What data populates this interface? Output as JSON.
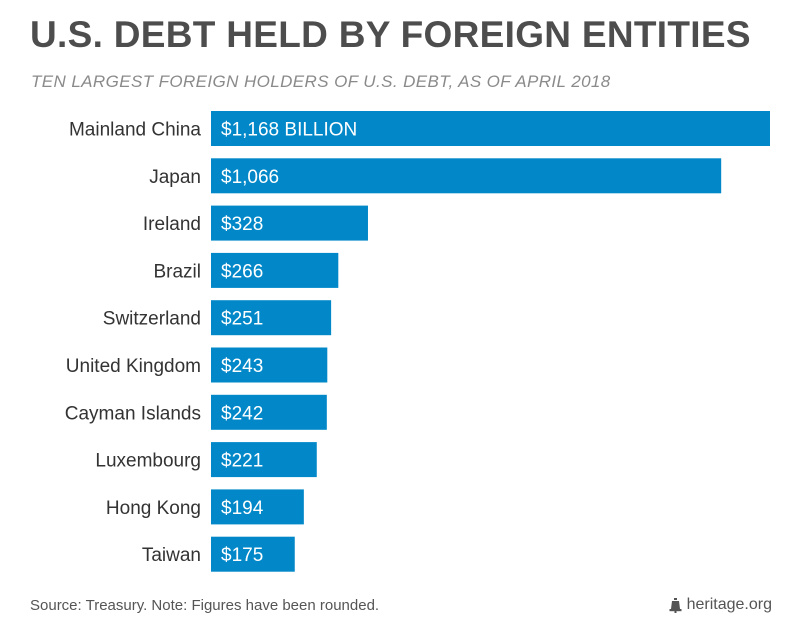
{
  "title": "U.S. DEBT HELD BY FOREIGN ENTITIES",
  "subtitle": "TEN LARGEST FOREIGN HOLDERS OF U.S. DEBT, AS OF APRIL 2018",
  "source_note": "Source: Treasury. Note: Figures have been rounded.",
  "brand": "heritage.org",
  "colors": {
    "bar": "#0288c9",
    "label": "#333333",
    "value_text": "#ffffff"
  },
  "chart_data": {
    "type": "bar",
    "orientation": "horizontal",
    "categories": [
      "Mainland China",
      "Japan",
      "Ireland",
      "Brazil",
      "Switzerland",
      "United Kingdom",
      "Cayman Islands",
      "Luxembourg",
      "Hong Kong",
      "Taiwan"
    ],
    "values": [
      1168,
      1066,
      328,
      266,
      251,
      243,
      242,
      221,
      194,
      175
    ],
    "value_labels": [
      "$1,168 BILLION",
      "$1,066",
      "$328",
      "$266",
      "$251",
      "$243",
      "$242",
      "$221",
      "$194",
      "$175"
    ],
    "unit": "billion USD",
    "grid": false,
    "legend": "none"
  }
}
